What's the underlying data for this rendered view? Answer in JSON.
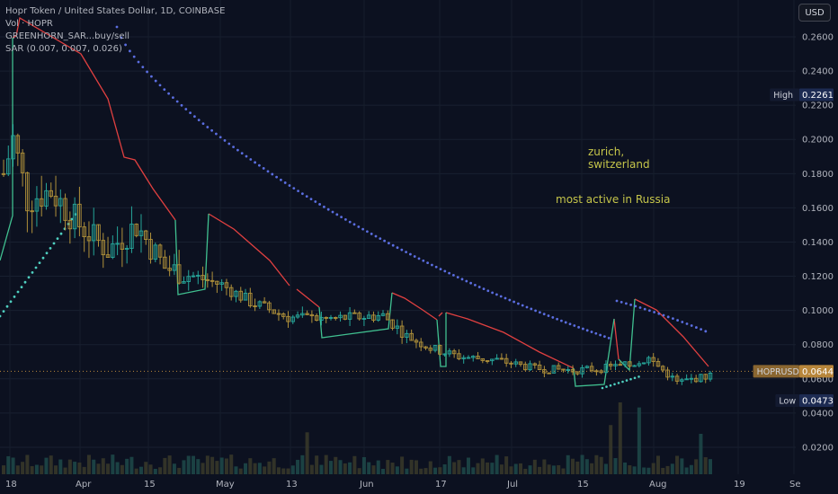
{
  "legend": {
    "title": "Hopr Token / United States Dollar, 1D, COINBASE",
    "vol": "Vol · HOPR",
    "indicator1": "GREENHORN_SAR...buy/sell",
    "indicator2": "SAR (0.007, 0.007, 0.026)"
  },
  "currency_button": "USD",
  "annotations": {
    "city_line1": "zurich,",
    "city_line2": "switzerland",
    "activity": "most active in Russia"
  },
  "chart_data": {
    "type": "candlestick",
    "symbol": "HOPRUSD",
    "ylim": [
      0.0,
      0.27
    ],
    "y_ticks": [
      "0.2600",
      "0.2400",
      "0.2200",
      "0.2000",
      "0.1800",
      "0.1600",
      "0.1400",
      "0.1200",
      "0.1000",
      "0.0800",
      "0.0600",
      "0.0400",
      "0.0200"
    ],
    "x_ticks": [
      "18",
      "Apr",
      "15",
      "May",
      "13",
      "Jun",
      "17",
      "Jul",
      "15",
      "Aug",
      "19",
      "Se"
    ],
    "price_labels": [
      {
        "name": "High",
        "value": "0.2261"
      },
      {
        "name": "HOPRUSD",
        "value": "0.0644"
      },
      {
        "name": "Low",
        "value": "0.0473"
      }
    ],
    "last_price": 0.0644,
    "high": 0.2261,
    "low": 0.0473,
    "colors": {
      "up": "#26a69a",
      "down": "#b0913a",
      "sar_dots": "#5b6ee0",
      "sar_teal": "#4fd0c0",
      "stop_red": "#e04040",
      "stop_green": "#40c090",
      "last_price": "#b8863b"
    }
  }
}
